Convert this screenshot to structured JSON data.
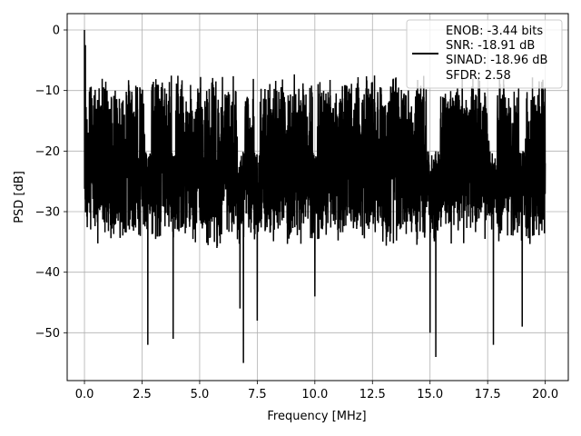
{
  "chart_data": {
    "type": "line",
    "title": "",
    "xlabel": "Frequency [MHz]",
    "ylabel": "PSD [dB]",
    "xlim": [
      -0.75,
      21.0
    ],
    "ylim": [
      -57.9,
      2.7
    ],
    "xticks": [
      0.0,
      2.5,
      5.0,
      7.5,
      10.0,
      12.5,
      15.0,
      17.5,
      20.0
    ],
    "xtick_labels": [
      "0.0",
      "2.5",
      "5.0",
      "7.5",
      "10.0",
      "12.5",
      "15.0",
      "17.5",
      "20.0"
    ],
    "yticks": [
      0,
      -10,
      -20,
      -30,
      -40,
      -50
    ],
    "ytick_labels": [
      "0",
      "−10",
      "−20",
      "−30",
      "−40",
      "−50"
    ],
    "grid": true,
    "legend_position": "upper right",
    "legend_lines": [
      "ENOB: -3.44 bits",
      "SNR: -18.91 dB",
      "SINAD: -18.96 dB",
      "SFDR: 2.58"
    ],
    "line_color": "#000000",
    "series": [
      {
        "x": [
          0.0,
          0.02,
          0.04,
          0.06,
          0.08,
          0.1,
          0.25,
          0.5,
          0.75,
          1.0,
          1.25,
          1.5,
          1.75,
          2.0,
          2.25,
          2.5,
          2.75,
          3.0,
          3.25,
          3.5,
          3.75,
          3.85,
          4.0,
          4.25,
          4.5,
          4.75,
          5.0,
          5.25,
          5.5,
          5.75,
          6.0,
          6.25,
          6.5,
          6.75,
          6.9,
          7.0,
          7.25,
          7.5,
          7.75,
          8.0,
          8.25,
          8.5,
          8.75,
          9.0,
          9.25,
          9.5,
          9.75,
          10.0,
          10.25,
          10.5,
          10.75,
          11.0,
          11.25,
          11.5,
          11.75,
          12.0,
          12.25,
          12.5,
          12.75,
          13.0,
          13.25,
          13.5,
          13.75,
          14.0,
          14.25,
          14.5,
          14.75,
          15.0,
          15.25,
          15.5,
          15.75,
          16.0,
          16.25,
          16.5,
          16.75,
          17.0,
          17.25,
          17.5,
          17.75,
          18.0,
          18.25,
          18.5,
          18.75,
          19.0,
          19.25,
          19.5,
          19.75,
          20.0
        ],
        "y": [
          0.0,
          -8.0,
          -2.5,
          -15.0,
          -22.0,
          -18.0,
          -25.0,
          -28.0,
          -24.0,
          -30.0,
          -22.0,
          -26.0,
          -31.0,
          -23.0,
          -27.0,
          -21.0,
          -52.0,
          -24.0,
          -29.0,
          -22.0,
          -26.0,
          -51.0,
          -25.0,
          -28.0,
          -23.0,
          -30.0,
          -22.0,
          -27.0,
          -24.0,
          -36.0,
          -25.0,
          -29.0,
          -23.0,
          -46.0,
          -55.0,
          -26.0,
          -24.0,
          -48.0,
          -22.0,
          -27.0,
          -25.0,
          -30.0,
          -23.0,
          -26.0,
          -24.0,
          -29.0,
          -22.0,
          -44.0,
          -25.0,
          -27.0,
          -23.0,
          -28.0,
          -24.0,
          -26.0,
          -22.0,
          -30.0,
          -25.0,
          -27.0,
          -23.0,
          -29.0,
          -24.0,
          -8.0,
          -26.0,
          -28.0,
          -23.0,
          -30.0,
          -25.0,
          -50.0,
          -54.0,
          -27.0,
          -24.0,
          -29.0,
          -22.0,
          -26.0,
          -25.0,
          -28.0,
          -23.0,
          -30.0,
          -52.0,
          -27.0,
          -24.0,
          -26.0,
          -25.0,
          -49.0,
          -23.0,
          -28.0,
          -24.0,
          -22.0
        ]
      }
    ]
  }
}
